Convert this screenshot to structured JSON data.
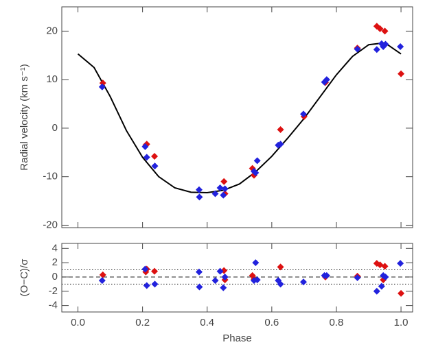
{
  "chart_data": [
    {
      "type": "scatter",
      "ylabel": "Radial velocity (km s⁻¹)",
      "ylim": [
        -20.5,
        25
      ],
      "yticks": [
        -20,
        -10,
        0,
        10,
        20
      ],
      "series": [
        {
          "color": "#000000",
          "style": "line",
          "x": [
            0,
            0.05,
            0.1,
            0.15,
            0.2,
            0.25,
            0.3,
            0.35,
            0.4,
            0.45,
            0.5,
            0.55,
            0.6,
            0.65,
            0.7,
            0.75,
            0.8,
            0.85,
            0.9,
            0.95,
            1.0
          ],
          "values": [
            15.3,
            12.5,
            6.5,
            -0.5,
            -6,
            -10,
            -12.3,
            -13.2,
            -13.3,
            -12.8,
            -11.5,
            -9,
            -5.8,
            -2,
            2,
            6.5,
            11,
            14.8,
            17.2,
            17.6,
            15.3
          ]
        },
        {
          "color": "#dd1111",
          "style": "diamond",
          "x": [
            0.077,
            0.21,
            0.213,
            0.237,
            0.452,
            0.455,
            0.54,
            0.545,
            0.627,
            0.7,
            0.766,
            0.865,
            0.925,
            0.935,
            0.95,
            1.0
          ],
          "values": [
            9.3,
            -3.5,
            -3.3,
            -5.8,
            -11,
            -13.5,
            -8.3,
            -9.7,
            -0.3,
            2.4,
            9.4,
            16.5,
            21,
            20.5,
            20,
            11.2
          ]
        },
        {
          "color": "#2222dd",
          "style": "diamond",
          "x": [
            0.075,
            0.208,
            0.213,
            0.238,
            0.375,
            0.376,
            0.425,
            0.44,
            0.45,
            0.455,
            0.545,
            0.55,
            0.555,
            0.62,
            0.627,
            0.698,
            0.763,
            0.77,
            0.865,
            0.925,
            0.94,
            0.945,
            0.952,
            0.998
          ],
          "values": [
            8.5,
            -3.8,
            -6,
            -7.8,
            -12.7,
            -14.2,
            -13.5,
            -12.3,
            -13.8,
            -12.5,
            -8.9,
            -9.2,
            -6.7,
            -3.5,
            -3.3,
            2.9,
            9.5,
            10,
            16.3,
            16.2,
            17.4,
            16.8,
            17.3,
            16.8
          ]
        }
      ]
    },
    {
      "type": "scatter",
      "xlabel": "Phase",
      "ylabel": "(O−C)/σ",
      "xlim": [
        -0.05,
        1.036
      ],
      "xticks": [
        {
          "value": 0,
          "label": "0.0"
        },
        0.2,
        0.4,
        0.6,
        0.8,
        {
          "value": 1,
          "label": "1.0"
        }
      ],
      "ylim": [
        -4.9,
        4.7
      ],
      "yticks": [
        -4,
        -2,
        0,
        2,
        4
      ],
      "reference_lines": [
        {
          "value": 0,
          "style": "dashed"
        },
        {
          "value": 1,
          "style": "dotted"
        },
        {
          "value": -1,
          "style": "dotted"
        }
      ],
      "series": [
        {
          "color": "#dd1111",
          "style": "diamond",
          "x": [
            0.077,
            0.21,
            0.213,
            0.237,
            0.452,
            0.455,
            0.54,
            0.545,
            0.627,
            0.766,
            0.865,
            0.925,
            0.935,
            0.945,
            0.95,
            1.0
          ],
          "values": [
            0.3,
            0.7,
            1.1,
            0.8,
            0.9,
            -0.4,
            0.2,
            -0.3,
            1.4,
            0.0,
            0.1,
            1.9,
            1.7,
            -0.4,
            1.5,
            -2.3
          ]
        },
        {
          "color": "#2222dd",
          "style": "diamond",
          "x": [
            0.075,
            0.208,
            0.213,
            0.238,
            0.375,
            0.376,
            0.425,
            0.44,
            0.45,
            0.455,
            0.545,
            0.55,
            0.555,
            0.62,
            0.627,
            0.698,
            0.763,
            0.77,
            0.865,
            0.925,
            0.94,
            0.945,
            0.952,
            0.998
          ],
          "values": [
            -0.5,
            1.1,
            -1.2,
            -1.0,
            0.7,
            -1.4,
            -0.5,
            0.8,
            -1.5,
            0.0,
            -0.5,
            2.0,
            -0.4,
            -0.5,
            -1.0,
            -0.7,
            0.2,
            0.2,
            -0.1,
            -2.0,
            -1.3,
            0.2,
            0.0,
            1.9
          ]
        }
      ]
    }
  ]
}
